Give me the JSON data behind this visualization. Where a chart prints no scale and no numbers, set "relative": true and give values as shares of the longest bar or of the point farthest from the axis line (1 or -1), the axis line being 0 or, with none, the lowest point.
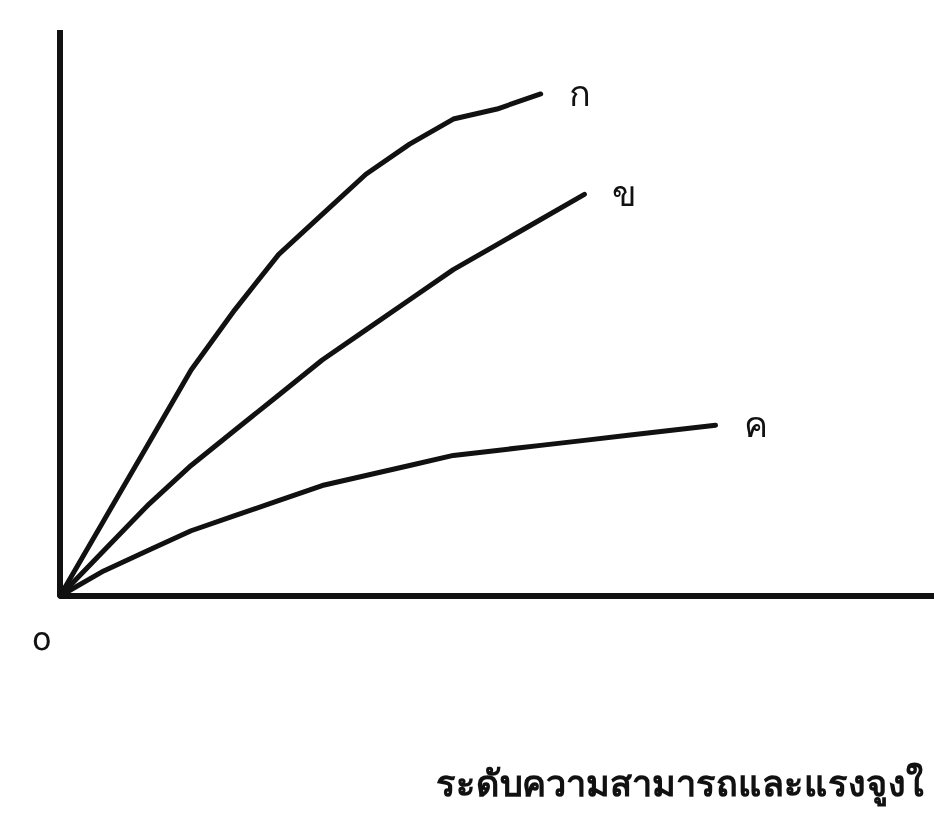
{
  "chart_data": {
    "type": "line",
    "relative": true,
    "xlabel": "ระดับความสามารถและแรงจูงใ",
    "annotations": [
      "o"
    ],
    "categories": [
      null,
      null,
      null,
      null,
      null,
      null,
      null,
      null,
      null,
      null,
      null,
      null,
      null,
      null,
      null,
      null,
      null,
      null,
      null,
      null,
      null
    ],
    "series": [
      {
        "name": "ก",
        "color": "#111111",
        "values": [
          0,
          0.15,
          0.3,
          0.45,
          0.57,
          0.68,
          0.76,
          0.84,
          0.9,
          0.95,
          0.97,
          1,
          null,
          null,
          null,
          null,
          null,
          null,
          null,
          null,
          null
        ]
      },
      {
        "name": "ข",
        "color": "#111111",
        "values": [
          0,
          0.09,
          0.18,
          0.26,
          0.33,
          0.4,
          0.47,
          0.53,
          0.59,
          0.65,
          0.7,
          0.75,
          0.8,
          null,
          null,
          null,
          null,
          null,
          null,
          null,
          null
        ]
      },
      {
        "name": "ค",
        "color": "#111111",
        "values": [
          0,
          0.05,
          0.09,
          0.13,
          0.16,
          0.19,
          0.22,
          0.24,
          0.26,
          0.28,
          0.29,
          0.3,
          0.31,
          0.32,
          0.33,
          0.34,
          null,
          null,
          null,
          null,
          null
        ]
      }
    ],
    "legend": false,
    "marker": "none",
    "line_style": "solid",
    "grid": false
  }
}
